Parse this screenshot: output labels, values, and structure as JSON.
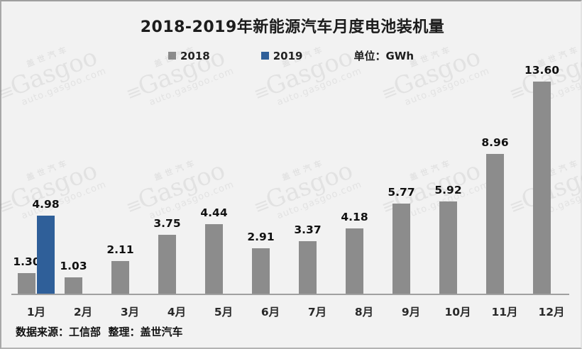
{
  "title": "2018-2019年新能源汽车月度电池装机量",
  "legend": {
    "items": [
      {
        "label": "2018",
        "color": "#8c8c8c"
      },
      {
        "label": "2019",
        "color": "#2f5f99"
      }
    ],
    "unit_label": "单位：GWh"
  },
  "chart_data": {
    "type": "bar",
    "title": "2018-2019年新能源汽车月度电池装机量",
    "unit": "GWh",
    "categories": [
      "1月",
      "2月",
      "3月",
      "4月",
      "5月",
      "6月",
      "7月",
      "8月",
      "9月",
      "10月",
      "11月",
      "12月"
    ],
    "series": [
      {
        "name": "2018",
        "color": "#8c8c8c",
        "values": [
          1.3,
          1.03,
          2.11,
          3.75,
          4.44,
          2.91,
          3.37,
          4.18,
          5.77,
          5.92,
          8.96,
          13.6
        ],
        "labels": [
          "1.30",
          "1.03",
          "2.11",
          "3.75",
          "4.44",
          "2.91",
          "3.37",
          "4.18",
          "5.77",
          "5.92",
          "8.96",
          "13.60"
        ]
      },
      {
        "name": "2019",
        "color": "#2f5f99",
        "values": [
          4.98,
          null,
          null,
          null,
          null,
          null,
          null,
          null,
          null,
          null,
          null,
          null
        ],
        "labels": [
          "4.98",
          null,
          null,
          null,
          null,
          null,
          null,
          null,
          null,
          null,
          null,
          null
        ]
      }
    ],
    "ylim": [
      0,
      15
    ],
    "grid": false,
    "legend_position": "top"
  },
  "footer": {
    "text": "数据来源：工信部  整理：盖世汽车"
  },
  "watermark": {
    "brand_cn": "盖世汽车",
    "brand_en": "Gasgoo",
    "logo_glyph": "≡",
    "url": "auto.gasgoo.com"
  }
}
